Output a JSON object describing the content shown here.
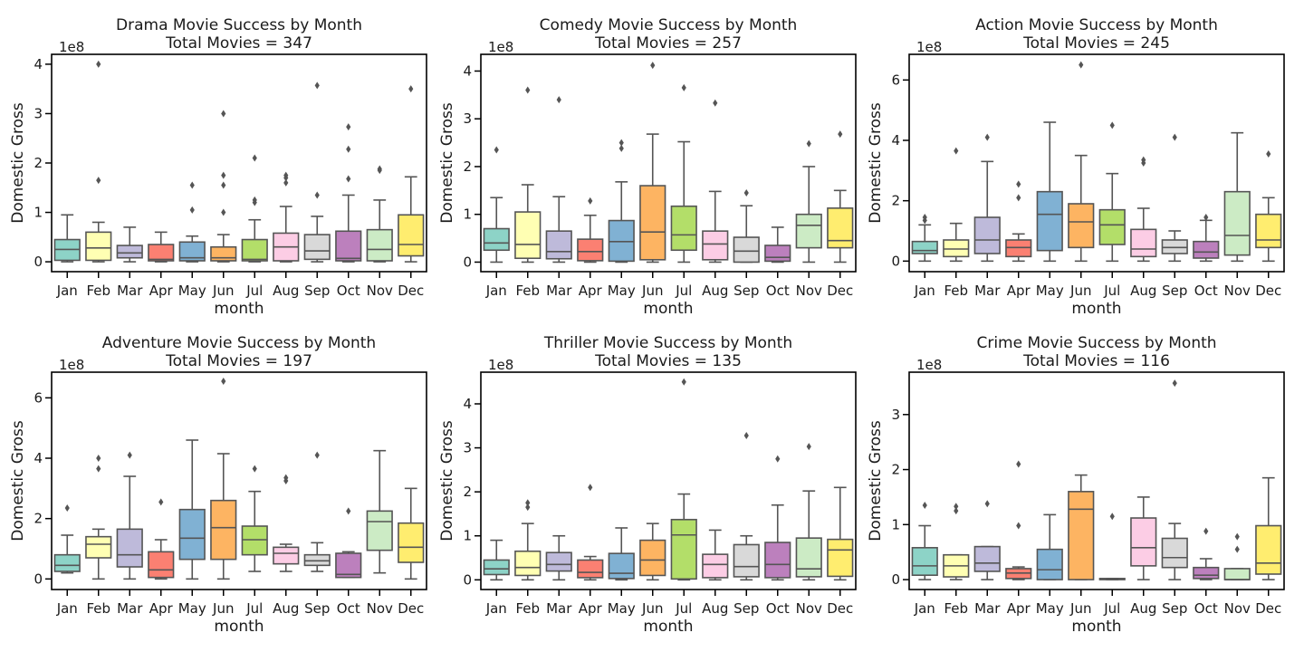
{
  "figure": {
    "xlabel": "month",
    "ylabel": "Domestic Gross",
    "offset_label": "1e8",
    "categories": [
      "Jan",
      "Feb",
      "Mar",
      "Apr",
      "May",
      "Jun",
      "Jul",
      "Aug",
      "Sep",
      "Oct",
      "Nov",
      "Dec"
    ],
    "palette": [
      "#8dd3c7",
      "#ffffb3",
      "#bebada",
      "#fb8072",
      "#80b1d3",
      "#fdb462",
      "#b3de69",
      "#fccde5",
      "#d9d9d9",
      "#bc80bd",
      "#ccebc5",
      "#ffed6f"
    ],
    "line_color": "#555555"
  },
  "chart_data": [
    {
      "type": "box",
      "title": "Drama Movie Success by Month",
      "subtitle": "Total Movies = 347",
      "xlabel": "month",
      "ylabel": "Domestic Gross",
      "y_unit": "1e8",
      "ylim": [
        -0.2,
        4.2
      ],
      "yticks": [
        0,
        1,
        2,
        3,
        4
      ],
      "categories": [
        "Jan",
        "Feb",
        "Mar",
        "Apr",
        "May",
        "Jun",
        "Jul",
        "Aug",
        "Sep",
        "Oct",
        "Nov",
        "Dec"
      ],
      "boxes": [
        {
          "min": 0.0,
          "q1": 0.03,
          "median": 0.25,
          "q3": 0.45,
          "max": 0.95,
          "outliers": []
        },
        {
          "min": 0.0,
          "q1": 0.03,
          "median": 0.28,
          "q3": 0.6,
          "max": 0.8,
          "outliers": [
            1.65,
            4.0
          ]
        },
        {
          "min": 0.0,
          "q1": 0.08,
          "median": 0.18,
          "q3": 0.33,
          "max": 0.7,
          "outliers": []
        },
        {
          "min": 0.0,
          "q1": 0.02,
          "median": 0.05,
          "q3": 0.35,
          "max": 0.6,
          "outliers": []
        },
        {
          "min": 0.0,
          "q1": 0.02,
          "median": 0.08,
          "q3": 0.4,
          "max": 0.52,
          "outliers": [
            1.05,
            1.55
          ]
        },
        {
          "min": 0.0,
          "q1": 0.02,
          "median": 0.08,
          "q3": 0.3,
          "max": 0.55,
          "outliers": [
            1.0,
            1.55,
            1.75,
            3.0
          ]
        },
        {
          "min": 0.0,
          "q1": 0.02,
          "median": 0.05,
          "q3": 0.45,
          "max": 0.85,
          "outliers": [
            1.2,
            1.25,
            2.1
          ]
        },
        {
          "min": 0.0,
          "q1": 0.02,
          "median": 0.3,
          "q3": 0.58,
          "max": 1.12,
          "outliers": [
            1.6,
            1.7,
            1.75
          ]
        },
        {
          "min": 0.0,
          "q1": 0.05,
          "median": 0.22,
          "q3": 0.55,
          "max": 0.92,
          "outliers": [
            1.35,
            3.57
          ]
        },
        {
          "min": 0.0,
          "q1": 0.02,
          "median": 0.07,
          "q3": 0.62,
          "max": 1.35,
          "outliers": [
            1.68,
            2.28,
            2.73
          ]
        },
        {
          "min": 0.0,
          "q1": 0.02,
          "median": 0.25,
          "q3": 0.65,
          "max": 1.25,
          "outliers": [
            1.85,
            1.88
          ]
        },
        {
          "min": 0.0,
          "q1": 0.12,
          "median": 0.35,
          "q3": 0.95,
          "max": 1.72,
          "outliers": [
            3.5
          ]
        }
      ]
    },
    {
      "type": "box",
      "title": "Comedy Movie Success by Month",
      "subtitle": "Total Movies = 257",
      "xlabel": "month",
      "ylabel": "Domestic Gross",
      "y_unit": "1e8",
      "ylim": [
        -0.2,
        4.35
      ],
      "yticks": [
        0,
        1,
        2,
        3,
        4
      ],
      "categories": [
        "Jan",
        "Feb",
        "Mar",
        "Apr",
        "May",
        "Jun",
        "Jul",
        "Aug",
        "Sep",
        "Oct",
        "Nov",
        "Dec"
      ],
      "boxes": [
        {
          "min": 0.0,
          "q1": 0.25,
          "median": 0.4,
          "q3": 0.7,
          "max": 1.35,
          "outliers": [
            2.35
          ]
        },
        {
          "min": 0.0,
          "q1": 0.08,
          "median": 0.37,
          "q3": 1.05,
          "max": 1.62,
          "outliers": [
            3.6
          ]
        },
        {
          "min": 0.0,
          "q1": 0.07,
          "median": 0.22,
          "q3": 0.65,
          "max": 1.37,
          "outliers": [
            3.4
          ]
        },
        {
          "min": 0.0,
          "q1": 0.03,
          "median": 0.22,
          "q3": 0.48,
          "max": 0.98,
          "outliers": [
            1.28
          ]
        },
        {
          "min": 0.0,
          "q1": 0.02,
          "median": 0.43,
          "q3": 0.87,
          "max": 1.68,
          "outliers": [
            2.38,
            2.5
          ]
        },
        {
          "min": 0.0,
          "q1": 0.05,
          "median": 0.63,
          "q3": 1.6,
          "max": 2.68,
          "outliers": [
            4.12
          ]
        },
        {
          "min": 0.0,
          "q1": 0.25,
          "median": 0.57,
          "q3": 1.17,
          "max": 2.52,
          "outliers": [
            3.65
          ]
        },
        {
          "min": 0.0,
          "q1": 0.05,
          "median": 0.38,
          "q3": 0.65,
          "max": 1.48,
          "outliers": [
            3.33
          ]
        },
        {
          "min": 0.0,
          "q1": 0.0,
          "median": 0.23,
          "q3": 0.52,
          "max": 1.18,
          "outliers": [
            1.45
          ]
        },
        {
          "min": 0.0,
          "q1": 0.02,
          "median": 0.1,
          "q3": 0.35,
          "max": 0.73,
          "outliers": []
        },
        {
          "min": 0.0,
          "q1": 0.3,
          "median": 0.77,
          "q3": 1.0,
          "max": 2.0,
          "outliers": [
            2.48
          ]
        },
        {
          "min": 0.0,
          "q1": 0.3,
          "median": 0.45,
          "q3": 1.13,
          "max": 1.5,
          "outliers": [
            2.68
          ]
        }
      ]
    },
    {
      "type": "box",
      "title": "Action Movie Success by Month",
      "subtitle": "Total Movies = 245",
      "xlabel": "month",
      "ylabel": "Domestic Gross",
      "y_unit": "1e8",
      "ylim": [
        -0.35,
        6.85
      ],
      "yticks": [
        0,
        2,
        4,
        6
      ],
      "categories": [
        "Jan",
        "Feb",
        "Mar",
        "Apr",
        "May",
        "Jun",
        "Jul",
        "Aug",
        "Sep",
        "Oct",
        "Nov",
        "Dec"
      ],
      "boxes": [
        {
          "min": 0.0,
          "q1": 0.25,
          "median": 0.35,
          "q3": 0.65,
          "max": 1.2,
          "outliers": [
            1.35,
            1.45
          ]
        },
        {
          "min": 0.0,
          "q1": 0.15,
          "median": 0.4,
          "q3": 0.7,
          "max": 1.25,
          "outliers": [
            3.65
          ]
        },
        {
          "min": 0.0,
          "q1": 0.25,
          "median": 0.7,
          "q3": 1.45,
          "max": 3.3,
          "outliers": [
            4.1
          ]
        },
        {
          "min": 0.0,
          "q1": 0.15,
          "median": 0.45,
          "q3": 0.7,
          "max": 0.9,
          "outliers": [
            2.1,
            2.55
          ]
        },
        {
          "min": 0.0,
          "q1": 0.35,
          "median": 1.55,
          "q3": 2.3,
          "max": 4.6,
          "outliers": []
        },
        {
          "min": 0.0,
          "q1": 0.45,
          "median": 1.3,
          "q3": 1.9,
          "max": 3.5,
          "outliers": [
            6.5
          ]
        },
        {
          "min": 0.0,
          "q1": 0.55,
          "median": 1.2,
          "q3": 1.7,
          "max": 2.9,
          "outliers": [
            4.5
          ]
        },
        {
          "min": 0.0,
          "q1": 0.15,
          "median": 0.4,
          "q3": 1.05,
          "max": 1.75,
          "outliers": [
            3.25,
            3.35
          ]
        },
        {
          "min": 0.0,
          "q1": 0.25,
          "median": 0.45,
          "q3": 0.7,
          "max": 1.0,
          "outliers": [
            4.1
          ]
        },
        {
          "min": 0.0,
          "q1": 0.1,
          "median": 0.3,
          "q3": 0.65,
          "max": 1.35,
          "outliers": [
            1.45
          ]
        },
        {
          "min": 0.0,
          "q1": 0.2,
          "median": 0.85,
          "q3": 2.3,
          "max": 4.25,
          "outliers": []
        },
        {
          "min": 0.0,
          "q1": 0.45,
          "median": 0.7,
          "q3": 1.55,
          "max": 2.1,
          "outliers": [
            3.55
          ]
        }
      ]
    },
    {
      "type": "box",
      "title": "Adventure Movie Success by Month",
      "subtitle": "Total Movies = 197",
      "xlabel": "month",
      "ylabel": "Domestic Gross",
      "y_unit": "1e8",
      "ylim": [
        -0.35,
        6.85
      ],
      "yticks": [
        0,
        2,
        4,
        6
      ],
      "categories": [
        "Jan",
        "Feb",
        "Mar",
        "Apr",
        "May",
        "Jun",
        "Jul",
        "Aug",
        "Sep",
        "Oct",
        "Nov",
        "Dec"
      ],
      "boxes": [
        {
          "min": 0.2,
          "q1": 0.25,
          "median": 0.45,
          "q3": 0.8,
          "max": 1.45,
          "outliers": [
            2.35
          ]
        },
        {
          "min": 0.0,
          "q1": 0.7,
          "median": 1.15,
          "q3": 1.4,
          "max": 1.65,
          "outliers": [
            3.65,
            4.0
          ]
        },
        {
          "min": 0.0,
          "q1": 0.4,
          "median": 0.8,
          "q3": 1.65,
          "max": 3.4,
          "outliers": [
            4.1
          ]
        },
        {
          "min": 0.0,
          "q1": 0.05,
          "median": 0.3,
          "q3": 0.9,
          "max": 1.3,
          "outliers": [
            2.55
          ]
        },
        {
          "min": 0.0,
          "q1": 0.65,
          "median": 1.35,
          "q3": 2.3,
          "max": 4.6,
          "outliers": []
        },
        {
          "min": 0.0,
          "q1": 0.65,
          "median": 1.7,
          "q3": 2.6,
          "max": 4.15,
          "outliers": [
            6.55
          ]
        },
        {
          "min": 0.25,
          "q1": 0.8,
          "median": 1.3,
          "q3": 1.75,
          "max": 2.9,
          "outliers": [
            3.65
          ]
        },
        {
          "min": 0.25,
          "q1": 0.5,
          "median": 0.85,
          "q3": 1.05,
          "max": 1.15,
          "outliers": [
            3.25,
            3.35
          ]
        },
        {
          "min": 0.25,
          "q1": 0.45,
          "median": 0.6,
          "q3": 0.8,
          "max": 1.2,
          "outliers": [
            4.1
          ]
        },
        {
          "min": 0.05,
          "q1": 0.05,
          "median": 0.15,
          "q3": 0.85,
          "max": 0.9,
          "outliers": [
            2.25
          ]
        },
        {
          "min": 0.2,
          "q1": 0.95,
          "median": 1.9,
          "q3": 2.25,
          "max": 4.25,
          "outliers": []
        },
        {
          "min": 0.0,
          "q1": 0.55,
          "median": 1.05,
          "q3": 1.85,
          "max": 3.0,
          "outliers": []
        }
      ]
    },
    {
      "type": "box",
      "title": "Thriller Movie Success by Month",
      "subtitle": "Total Movies = 135",
      "xlabel": "month",
      "ylabel": "Domestic Gross",
      "y_unit": "1e8",
      "ylim": [
        -0.22,
        4.72
      ],
      "yticks": [
        0,
        1,
        2,
        3,
        4
      ],
      "categories": [
        "Jan",
        "Feb",
        "Mar",
        "Apr",
        "May",
        "Jun",
        "Jul",
        "Aug",
        "Sep",
        "Oct",
        "Nov",
        "Dec"
      ],
      "boxes": [
        {
          "min": 0.0,
          "q1": 0.12,
          "median": 0.25,
          "q3": 0.45,
          "max": 0.9,
          "outliers": []
        },
        {
          "min": 0.0,
          "q1": 0.1,
          "median": 0.28,
          "q3": 0.65,
          "max": 1.28,
          "outliers": [
            1.65,
            1.75
          ]
        },
        {
          "min": 0.0,
          "q1": 0.2,
          "median": 0.35,
          "q3": 0.62,
          "max": 1.0,
          "outliers": []
        },
        {
          "min": 0.0,
          "q1": 0.05,
          "median": 0.17,
          "q3": 0.45,
          "max": 0.53,
          "outliers": [
            2.1
          ]
        },
        {
          "min": 0.0,
          "q1": 0.03,
          "median": 0.15,
          "q3": 0.6,
          "max": 1.18,
          "outliers": []
        },
        {
          "min": 0.0,
          "q1": 0.1,
          "median": 0.45,
          "q3": 0.9,
          "max": 1.28,
          "outliers": []
        },
        {
          "min": 0.0,
          "q1": 0.02,
          "median": 1.02,
          "q3": 1.37,
          "max": 1.95,
          "outliers": [
            4.5
          ]
        },
        {
          "min": 0.0,
          "q1": 0.05,
          "median": 0.35,
          "q3": 0.58,
          "max": 1.13,
          "outliers": []
        },
        {
          "min": 0.0,
          "q1": 0.07,
          "median": 0.3,
          "q3": 0.8,
          "max": 1.0,
          "outliers": [
            3.28
          ]
        },
        {
          "min": 0.0,
          "q1": 0.05,
          "median": 0.35,
          "q3": 0.85,
          "max": 1.7,
          "outliers": [
            2.75
          ]
        },
        {
          "min": 0.0,
          "q1": 0.07,
          "median": 0.25,
          "q3": 0.95,
          "max": 2.02,
          "outliers": [
            3.03
          ]
        },
        {
          "min": 0.0,
          "q1": 0.08,
          "median": 0.68,
          "q3": 0.92,
          "max": 2.1,
          "outliers": []
        }
      ]
    },
    {
      "type": "box",
      "title": "Crime Movie Success by Month",
      "subtitle": "Total Movies = 116",
      "xlabel": "month",
      "ylabel": "Domestic Gross",
      "y_unit": "1e8",
      "ylim": [
        -0.18,
        3.77
      ],
      "yticks": [
        0,
        1,
        2,
        3
      ],
      "categories": [
        "Jan",
        "Feb",
        "Mar",
        "Apr",
        "May",
        "Jun",
        "Jul",
        "Aug",
        "Sep",
        "Oct",
        "Nov",
        "Dec"
      ],
      "boxes": [
        {
          "min": 0.0,
          "q1": 0.08,
          "median": 0.25,
          "q3": 0.58,
          "max": 0.98,
          "outliers": [
            1.35
          ]
        },
        {
          "min": 0.0,
          "q1": 0.05,
          "median": 0.25,
          "q3": 0.45,
          "max": 0.45,
          "outliers": [
            1.25,
            1.33
          ]
        },
        {
          "min": 0.0,
          "q1": 0.15,
          "median": 0.3,
          "q3": 0.6,
          "max": 0.6,
          "outliers": [
            1.38
          ]
        },
        {
          "min": 0.0,
          "q1": 0.02,
          "median": 0.12,
          "q3": 0.2,
          "max": 0.23,
          "outliers": [
            0.98,
            2.1
          ]
        },
        {
          "min": 0.0,
          "q1": 0.0,
          "median": 0.18,
          "q3": 0.55,
          "max": 1.18,
          "outliers": []
        },
        {
          "min": 0.0,
          "q1": 0.0,
          "median": 1.28,
          "q3": 1.6,
          "max": 1.9,
          "outliers": []
        },
        {
          "min": 0.0,
          "q1": 0.0,
          "median": 0.01,
          "q3": 0.02,
          "max": 0.02,
          "outliers": [
            1.15
          ]
        },
        {
          "min": 0.0,
          "q1": 0.25,
          "median": 0.58,
          "q3": 1.12,
          "max": 1.5,
          "outliers": []
        },
        {
          "min": 0.0,
          "q1": 0.22,
          "median": 0.4,
          "q3": 0.75,
          "max": 1.02,
          "outliers": [
            3.57
          ]
        },
        {
          "min": 0.0,
          "q1": 0.02,
          "median": 0.08,
          "q3": 0.22,
          "max": 0.38,
          "outliers": [
            0.88
          ]
        },
        {
          "min": 0.0,
          "q1": 0.0,
          "median": 0.0,
          "q3": 0.2,
          "max": 0.2,
          "outliers": [
            0.55,
            0.78
          ]
        },
        {
          "min": 0.0,
          "q1": 0.1,
          "median": 0.3,
          "q3": 0.98,
          "max": 1.85,
          "outliers": []
        }
      ]
    }
  ]
}
